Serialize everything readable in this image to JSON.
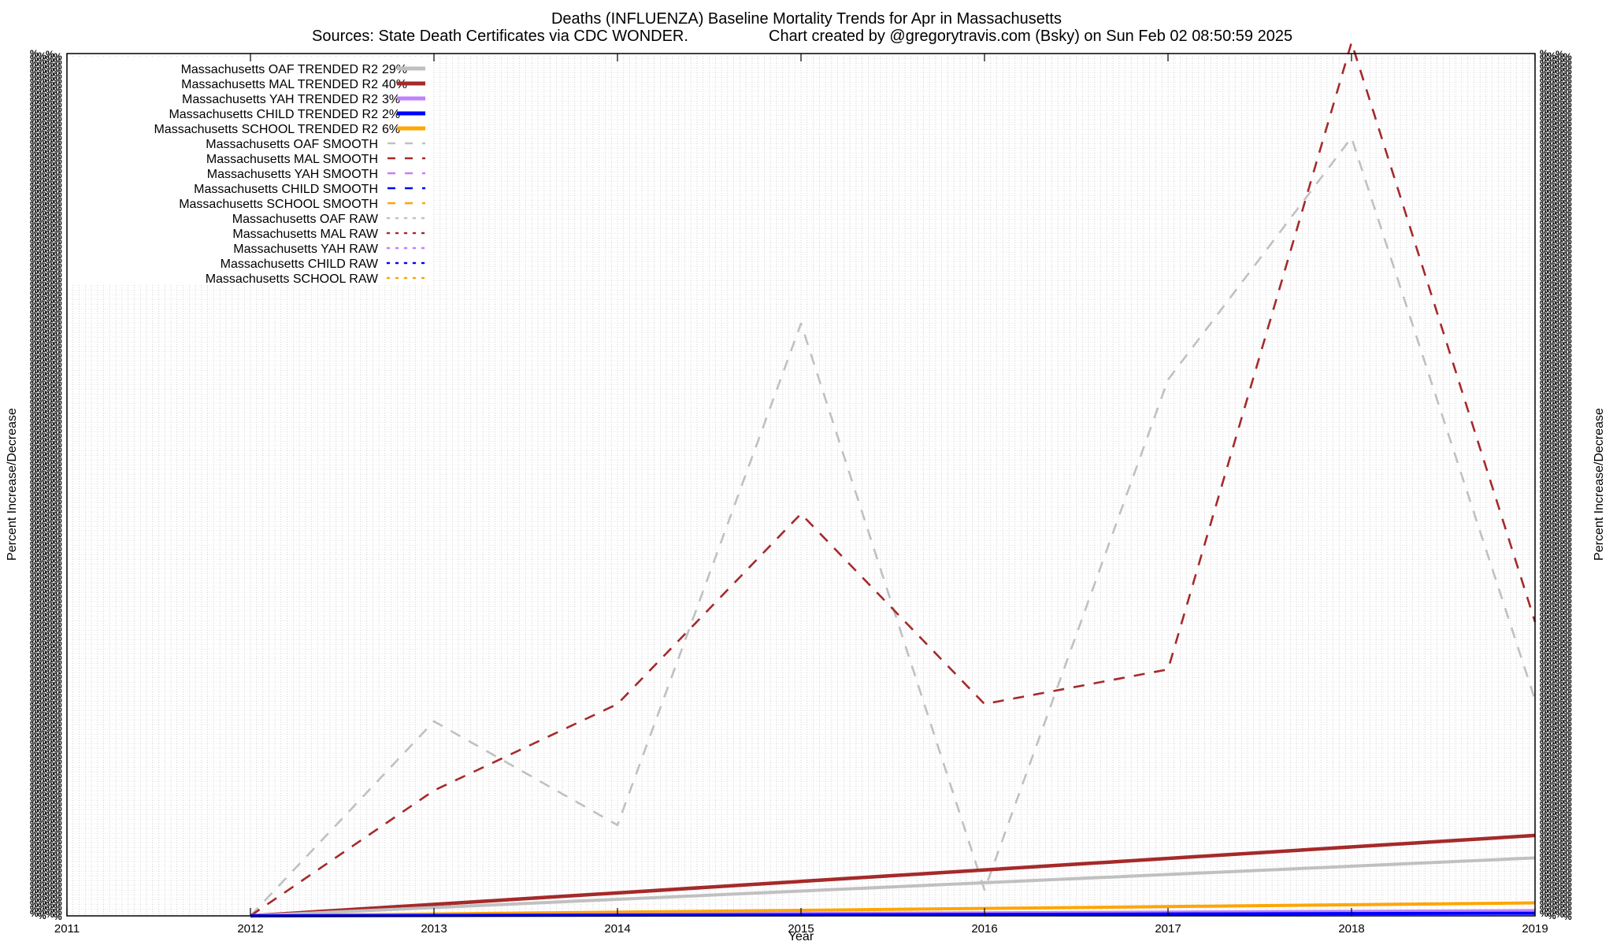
{
  "chart_data": {
    "type": "line",
    "title_line1": "Deaths (INFLUENZA)  Baseline Mortality Trends for Apr in Massachusetts",
    "title_line2_left": "Sources: State Death Certificates via CDC WONDER.",
    "title_line2_right": "Chart created by @gregorytravis.com (Bsky) on Sun Feb 02 08:50:59 2025",
    "xlabel": "Year",
    "ylabel_left": "Percent Increase/Decrease",
    "ylabel_right": "Percent Increase/Decrease",
    "x_ticks": [
      "2011",
      "2012",
      "2013",
      "2014",
      "2015",
      "2016",
      "2017",
      "2018",
      "2019"
    ],
    "xlim": [
      2011,
      2019
    ],
    "ylim": [
      0,
      100
    ],
    "grid": true,
    "legend_position": "top-left",
    "legend": [
      {
        "label": "Massachusetts OAF TRENDED R2",
        "r2": "29%",
        "style": "solid",
        "color": "#c0c0c0"
      },
      {
        "label": "Massachusetts MAL TRENDED R2",
        "r2": "40%",
        "style": "solid",
        "color": "#a52a2a"
      },
      {
        "label": "Massachusetts YAH TRENDED R2",
        "r2": "3%",
        "style": "solid",
        "color": "#c080ff"
      },
      {
        "label": "Massachusetts CHILD TRENDED R2",
        "r2": "2%",
        "style": "solid",
        "color": "#0000ff"
      },
      {
        "label": "Massachusetts SCHOOL TRENDED R2",
        "r2": "6%",
        "style": "solid",
        "color": "#ffa500"
      },
      {
        "label": "Massachusetts OAF SMOOTH",
        "r2": "",
        "style": "dashed",
        "color": "#c0c0c0"
      },
      {
        "label": "Massachusetts MAL SMOOTH",
        "r2": "",
        "style": "dashed",
        "color": "#a52a2a"
      },
      {
        "label": "Massachusetts YAH SMOOTH",
        "r2": "",
        "style": "dashed",
        "color": "#c080ff"
      },
      {
        "label": "Massachusetts CHILD SMOOTH",
        "r2": "",
        "style": "dashed",
        "color": "#0000ff"
      },
      {
        "label": "Massachusetts SCHOOL SMOOTH",
        "r2": "",
        "style": "dashed",
        "color": "#ffa500"
      },
      {
        "label": "Massachusetts OAF RAW",
        "r2": "",
        "style": "dotted",
        "color": "#c0c0c0"
      },
      {
        "label": "Massachusetts MAL RAW",
        "r2": "",
        "style": "dotted",
        "color": "#a52a2a"
      },
      {
        "label": "Massachusetts YAH RAW",
        "r2": "",
        "style": "dotted",
        "color": "#c080ff"
      },
      {
        "label": "Massachusetts CHILD RAW",
        "r2": "",
        "style": "dotted",
        "color": "#0000ff"
      },
      {
        "label": "Massachusetts SCHOOL RAW",
        "r2": "",
        "style": "dotted",
        "color": "#ffa500"
      }
    ],
    "series": [
      {
        "name": "Massachusetts OAF SMOOTH",
        "style": "dashed",
        "color": "#c0c0c0",
        "x": [
          2012,
          2013,
          2014,
          2015,
          2016,
          2017,
          2018,
          2019
        ],
        "y": [
          0,
          22.5,
          10.5,
          68.5,
          3.0,
          62.0,
          90.0,
          25.0
        ]
      },
      {
        "name": "Massachusetts MAL SMOOTH",
        "style": "dashed",
        "color": "#a52a2a",
        "x": [
          2012,
          2013,
          2014,
          2015,
          2016,
          2017,
          2018,
          2019
        ],
        "y": [
          0,
          14.5,
          24.5,
          46.5,
          24.5,
          28.5,
          101.0,
          34.0
        ]
      },
      {
        "name": "Massachusetts MAL TRENDED R2",
        "style": "solid",
        "color": "#a52a2a",
        "x": [
          2012,
          2019
        ],
        "y": [
          0,
          9.3
        ]
      },
      {
        "name": "Massachusetts OAF TRENDED R2",
        "style": "solid",
        "color": "#c0c0c0",
        "x": [
          2012,
          2019
        ],
        "y": [
          0,
          6.7
        ]
      },
      {
        "name": "Massachusetts SCHOOL TRENDED R2",
        "style": "solid",
        "color": "#ffa500",
        "x": [
          2012,
          2019
        ],
        "y": [
          0,
          1.5
        ]
      },
      {
        "name": "Massachusetts YAH TRENDED R2",
        "style": "solid",
        "color": "#c080ff",
        "x": [
          2012,
          2019
        ],
        "y": [
          0,
          0.6
        ]
      },
      {
        "name": "Massachusetts CHILD TRENDED R2",
        "style": "solid",
        "color": "#0000ff",
        "x": [
          2012,
          2019
        ],
        "y": [
          0,
          0.3
        ]
      }
    ]
  }
}
